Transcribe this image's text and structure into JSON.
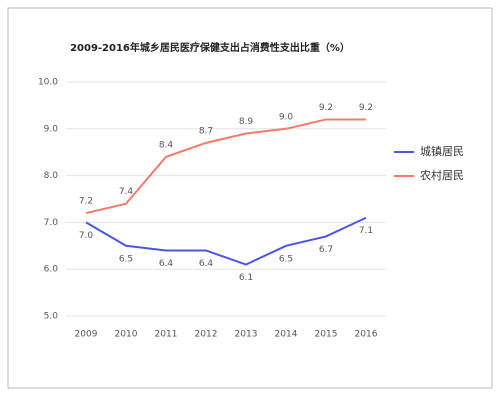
{
  "chart_data": {
    "type": "line",
    "title": "2009-2016年城乡居民医疗保健支出占消费性支出比重（%）",
    "categories": [
      "2009",
      "2010",
      "2011",
      "2012",
      "2013",
      "2014",
      "2015",
      "2016"
    ],
    "series": [
      {
        "name": "城镇居民",
        "color": "#4a55e8",
        "values": [
          7.0,
          6.5,
          6.4,
          6.4,
          6.1,
          6.5,
          6.7,
          7.1
        ],
        "value_labels": [
          "7.0",
          "6.5",
          "6.4",
          "6.4",
          "6.1",
          "6.5",
          "6.7",
          "7.1"
        ]
      },
      {
        "name": "农村居民",
        "color": "#f27b6a",
        "values": [
          7.2,
          7.4,
          8.4,
          8.7,
          8.9,
          9.0,
          9.2,
          9.2
        ],
        "value_labels": [
          "7.2",
          "7.4",
          "8.4",
          "8.7",
          "8.9",
          "9.0",
          "9.2",
          "9.2"
        ]
      }
    ],
    "ylim": [
      5,
      10
    ],
    "yticks": [
      {
        "value": 5,
        "label": "5.0"
      },
      {
        "value": 6,
        "label": "6.0"
      },
      {
        "value": 7,
        "label": "7.0"
      },
      {
        "value": 8,
        "label": "8.0"
      },
      {
        "value": 9,
        "label": "9.0"
      },
      {
        "value": 10,
        "label": "10.0"
      }
    ],
    "grid": true,
    "legend": "right"
  }
}
